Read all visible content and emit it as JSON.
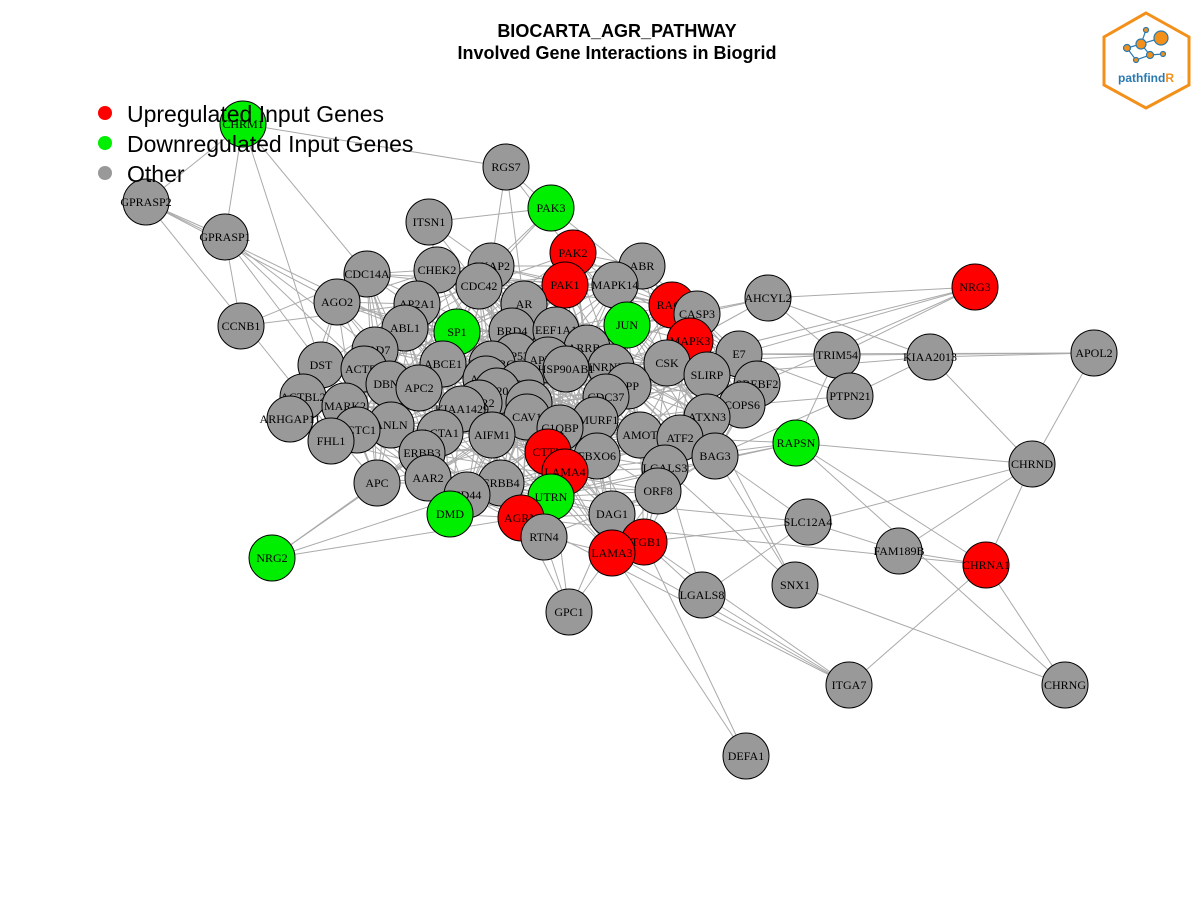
{
  "title": {
    "line1": "BIOCARTA_AGR_PATHWAY",
    "line2": "Involved Gene Interactions in Biogrid"
  },
  "legend": [
    {
      "label": "Upregulated Input Genes",
      "color": "#ff0000"
    },
    {
      "label": "Downregulated Input Genes",
      "color": "#00ee00"
    },
    {
      "label": "Other",
      "color": "#999999"
    }
  ],
  "logo": {
    "text_main": "pathfind",
    "text_accent": "R",
    "accent_color": "#f39019"
  },
  "colors": {
    "up": "#ff0000",
    "down": "#00ee00",
    "other": "#999999",
    "edge": "#aaaaaa"
  },
  "nodes": [
    {
      "id": "CHRM1",
      "status": "down"
    },
    {
      "id": "GPRASP2",
      "status": "other"
    },
    {
      "id": "GPRASP1",
      "status": "other"
    },
    {
      "id": "RGS7",
      "status": "other"
    },
    {
      "id": "PAK3",
      "status": "down"
    },
    {
      "id": "ITSN1",
      "status": "other"
    },
    {
      "id": "PAK2",
      "status": "up"
    },
    {
      "id": "CKAP2",
      "status": "other"
    },
    {
      "id": "ABR",
      "status": "other"
    },
    {
      "id": "CDC14A",
      "status": "other"
    },
    {
      "id": "CHEK2",
      "status": "other"
    },
    {
      "id": "PAK1",
      "status": "up"
    },
    {
      "id": "MAPK14",
      "status": "other"
    },
    {
      "id": "NRG3",
      "status": "up"
    },
    {
      "id": "AGO2",
      "status": "other"
    },
    {
      "id": "CDC42",
      "status": "other"
    },
    {
      "id": "RAC1",
      "status": "up"
    },
    {
      "id": "AHCYL2",
      "status": "other"
    },
    {
      "id": "AP2A1",
      "status": "other"
    },
    {
      "id": "AR",
      "status": "other"
    },
    {
      "id": "CASP3",
      "status": "other"
    },
    {
      "id": "CCNB1",
      "status": "other"
    },
    {
      "id": "ABL1",
      "status": "other"
    },
    {
      "id": "SP1",
      "status": "down"
    },
    {
      "id": "BRD4",
      "status": "other"
    },
    {
      "id": "EEF1A1",
      "status": "other"
    },
    {
      "id": "JUN",
      "status": "down"
    },
    {
      "id": "MAPK3",
      "status": "up"
    },
    {
      "id": "BRD7",
      "status": "other"
    },
    {
      "id": "ARRB1",
      "status": "other"
    },
    {
      "id": "TRIM54",
      "status": "other"
    },
    {
      "id": "APOL2",
      "status": "other"
    },
    {
      "id": "DST",
      "status": "other"
    },
    {
      "id": "ABCE1",
      "status": "other"
    },
    {
      "id": "TP53",
      "status": "other"
    },
    {
      "id": "E7",
      "status": "other"
    },
    {
      "id": "KIAA2013",
      "status": "other"
    },
    {
      "id": "ACTR3",
      "status": "other"
    },
    {
      "id": "LRPPRC",
      "status": "other"
    },
    {
      "id": "APEX1",
      "status": "other"
    },
    {
      "id": "HNRNPLL",
      "status": "other"
    },
    {
      "id": "CSK",
      "status": "other"
    },
    {
      "id": "HSP90AB1",
      "status": "other"
    },
    {
      "id": "DBN1",
      "status": "other"
    },
    {
      "id": "ACTB",
      "status": "other"
    },
    {
      "id": "SLIRP",
      "status": "other"
    },
    {
      "id": "SREBF2",
      "status": "other"
    },
    {
      "id": "APC2",
      "status": "other"
    },
    {
      "id": "TNIP2",
      "status": "other"
    },
    {
      "id": "APP",
      "status": "other"
    },
    {
      "id": "ACTBL2",
      "status": "other"
    },
    {
      "id": "KIF20A",
      "status": "other"
    },
    {
      "id": "PTPN21",
      "status": "other"
    },
    {
      "id": "CDC37",
      "status": "other"
    },
    {
      "id": "AGR2",
      "status": "other"
    },
    {
      "id": "ESR1",
      "status": "other"
    },
    {
      "id": "COPS6",
      "status": "other"
    },
    {
      "id": "MARK2",
      "status": "other"
    },
    {
      "id": "ARHGAP11",
      "status": "other"
    },
    {
      "id": "KIAA1429",
      "status": "other"
    },
    {
      "id": "SMURF1",
      "status": "other"
    },
    {
      "id": "ATXN3",
      "status": "other"
    },
    {
      "id": "CAV1",
      "status": "other"
    },
    {
      "id": "ANLN",
      "status": "other"
    },
    {
      "id": "ACTC1",
      "status": "other"
    },
    {
      "id": "C1QBP",
      "status": "other"
    },
    {
      "id": "ACTA1",
      "status": "other"
    },
    {
      "id": "AMOT",
      "status": "other"
    },
    {
      "id": "AIFM1",
      "status": "other"
    },
    {
      "id": "FHL1",
      "status": "other"
    },
    {
      "id": "ATF2",
      "status": "other"
    },
    {
      "id": "RAPSN",
      "status": "down"
    },
    {
      "id": "ERBB3",
      "status": "other"
    },
    {
      "id": "CTTN",
      "status": "up"
    },
    {
      "id": "FBXO6",
      "status": "other"
    },
    {
      "id": "BAG3",
      "status": "other"
    },
    {
      "id": "CHRND",
      "status": "other"
    },
    {
      "id": "LGALS3",
      "status": "other"
    },
    {
      "id": "LAMA4",
      "status": "up"
    },
    {
      "id": "AAR2",
      "status": "other"
    },
    {
      "id": "APC",
      "status": "other"
    },
    {
      "id": "ERBB4",
      "status": "other"
    },
    {
      "id": "ORF8",
      "status": "other"
    },
    {
      "id": "CD44",
      "status": "other"
    },
    {
      "id": "UTRN",
      "status": "down"
    },
    {
      "id": "DAG1",
      "status": "other"
    },
    {
      "id": "SLC12A4",
      "status": "other"
    },
    {
      "id": "DMD",
      "status": "down"
    },
    {
      "id": "AGRN",
      "status": "up"
    },
    {
      "id": "ITGB1",
      "status": "up"
    },
    {
      "id": "FAM189B",
      "status": "other"
    },
    {
      "id": "RTN4",
      "status": "other"
    },
    {
      "id": "CHRNA1",
      "status": "up"
    },
    {
      "id": "LAMA3",
      "status": "up"
    },
    {
      "id": "NRG2",
      "status": "down"
    },
    {
      "id": "SNX1",
      "status": "other"
    },
    {
      "id": "LGALS8",
      "status": "other"
    },
    {
      "id": "GPC1",
      "status": "other"
    },
    {
      "id": "ITGA7",
      "status": "other"
    },
    {
      "id": "CHRNG",
      "status": "other"
    },
    {
      "id": "DEFA1",
      "status": "other"
    }
  ]
}
